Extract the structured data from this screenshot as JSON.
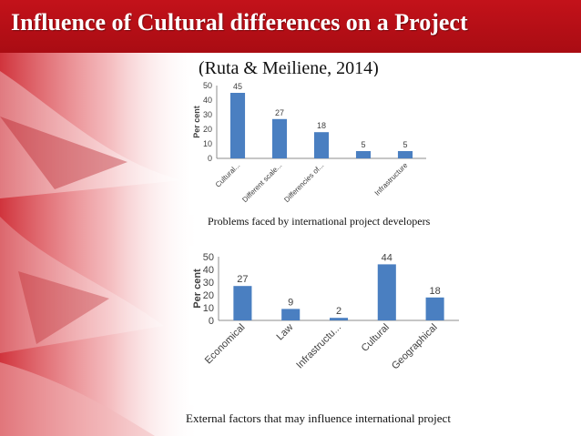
{
  "slide": {
    "title": "Influence of Cultural differences on a Project",
    "subtitle": "(Ruta & Meiliene, 2014)"
  },
  "theme": {
    "title_bar_color": "#b50f17",
    "title_text_color": "#ffffff",
    "bar_color": "#4a7fc1",
    "decor_colors": [
      "#c8101a",
      "#e04048",
      "#f2b7ba"
    ]
  },
  "chart_data": [
    {
      "type": "bar",
      "categories": [
        "Cultural...",
        "Different scale...",
        "Differencies of...",
        "",
        "Infrastructure"
      ],
      "values": [
        45,
        27,
        18,
        5,
        5
      ],
      "ylabel": "Per cent",
      "ylim": [
        0,
        50
      ],
      "yticks": [
        0,
        10,
        20,
        30,
        40,
        50
      ],
      "grid": false,
      "legend": "none",
      "caption": "Problems faced by international project developers"
    },
    {
      "type": "bar",
      "categories": [
        "Economical",
        "Law",
        "Infrastructu...",
        "Cultural",
        "Geographical"
      ],
      "values": [
        27,
        9,
        2,
        44,
        18
      ],
      "ylabel": "Per cent",
      "ylim": [
        0,
        50
      ],
      "yticks": [
        0,
        10,
        20,
        30,
        40,
        50
      ],
      "grid": false,
      "legend": "none",
      "caption": "External factors that may influence international project"
    }
  ]
}
